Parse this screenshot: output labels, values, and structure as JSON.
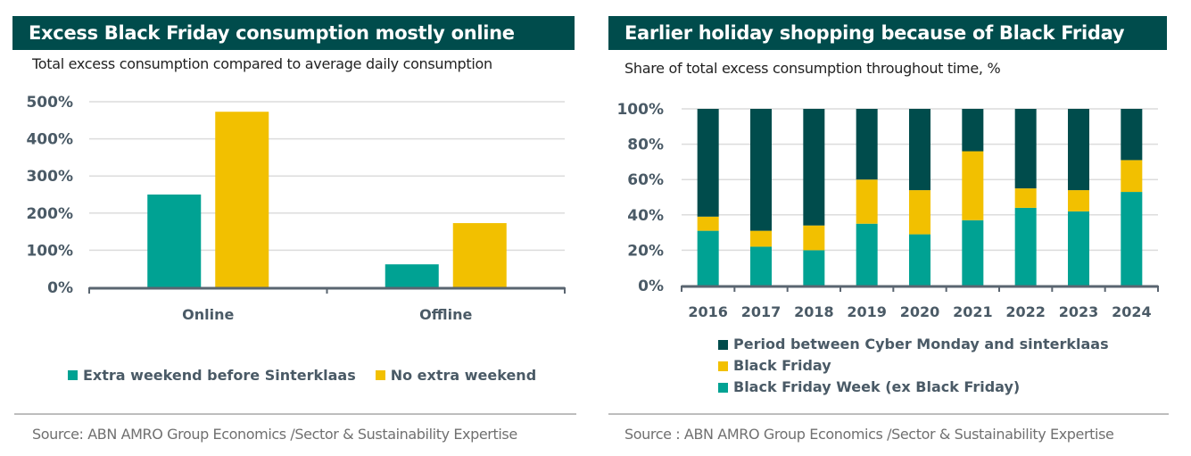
{
  "colors": {
    "header_bg": "#004c4c",
    "teal": "#00a293",
    "yellow": "#f2c000",
    "dark_green": "#004c4c",
    "axis": "#5a6570",
    "grid": "#dcdcdc"
  },
  "left": {
    "title": "Excess Black Friday consumption mostly online",
    "subtitle": "Total excess consumption compared to average daily consumption",
    "legend": [
      "Extra weekend before Sinterklaas",
      "No extra weekend"
    ],
    "source": "Source: ABN AMRO Group Economics /Sector & Sustainability Expertise"
  },
  "right": {
    "title": "Earlier holiday shopping because of Black Friday",
    "subtitle": "Share of total excess consumption throughout time, %",
    "legend": [
      "Period between Cyber Monday and sinterklaas",
      "Black Friday",
      "Black Friday Week (ex Black Friday)"
    ],
    "source": "Source : ABN AMRO Group Economics /Sector & Sustainability Expertise"
  },
  "chart_data": [
    {
      "type": "bar",
      "title": "Excess Black Friday consumption mostly online",
      "subtitle": "Total excess consumption compared to average daily consumption",
      "categories": [
        "Online",
        "Offline"
      ],
      "series": [
        {
          "name": "Extra weekend before Sinterklaas",
          "color": "#00a293",
          "values": [
            250,
            62
          ]
        },
        {
          "name": "No extra weekend",
          "color": "#f2c000",
          "values": [
            473,
            173
          ]
        }
      ],
      "yticks": [
        0,
        100,
        200,
        300,
        400,
        500
      ],
      "ytick_labels": [
        "0%",
        "100%",
        "200%",
        "300%",
        "400%",
        "500%"
      ],
      "ylim": [
        0,
        500
      ],
      "xlabel": "",
      "ylabel": "",
      "grid": true,
      "legend_position": "bottom"
    },
    {
      "type": "bar",
      "stacked": true,
      "title": "Earlier holiday shopping because of Black Friday",
      "subtitle": "Share of total excess consumption throughout time, %",
      "categories": [
        "2016",
        "2017",
        "2018",
        "2019",
        "2020",
        "2021",
        "2022",
        "2023",
        "2024"
      ],
      "series": [
        {
          "name": "Black Friday Week (ex Black Friday)",
          "color": "#00a293",
          "values": [
            31,
            22,
            20,
            35,
            29,
            37,
            44,
            42,
            53
          ]
        },
        {
          "name": "Black Friday",
          "color": "#f2c000",
          "values": [
            8,
            9,
            14,
            25,
            25,
            39,
            11,
            12,
            18
          ]
        },
        {
          "name": "Period between Cyber Monday and sinterklaas",
          "color": "#004c4c",
          "values": [
            61,
            69,
            66,
            40,
            46,
            24,
            45,
            46,
            29
          ]
        }
      ],
      "yticks": [
        0,
        20,
        40,
        60,
        80,
        100
      ],
      "ytick_labels": [
        "0%",
        "20%",
        "40%",
        "60%",
        "80%",
        "100%"
      ],
      "ylim": [
        0,
        100
      ],
      "xlabel": "",
      "ylabel": "",
      "grid": true,
      "legend_position": "bottom"
    }
  ]
}
